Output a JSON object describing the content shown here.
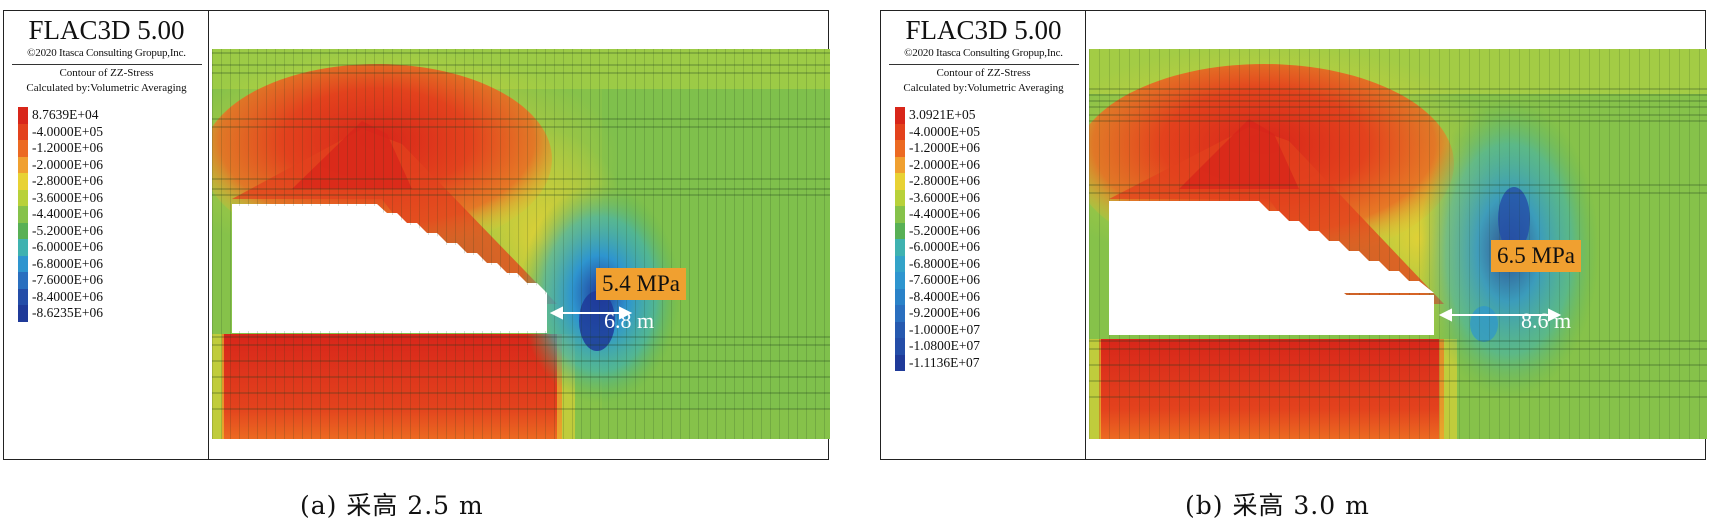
{
  "panels": [
    {
      "title": "FLAC3D 5.00",
      "copyright": "©2020 Itasca Consulting Gropup,Inc.",
      "contour_title": "Contour of ZZ-Stress",
      "calculated_by": "Calculated by:Volumetric Averaging",
      "levels": [
        "8.7639E+04",
        "-4.0000E+05",
        "-1.2000E+06",
        "-2.0000E+06",
        "-2.8000E+06",
        "-3.6000E+06",
        "-4.4000E+06",
        "-5.2000E+06",
        "-6.0000E+06",
        "-6.8000E+06",
        "-7.6000E+06",
        "-8.4000E+06",
        "-8.6235E+06"
      ],
      "level_colors": [
        "#d8261a",
        "#e3421d",
        "#ec6a22",
        "#f0a030",
        "#e8d234",
        "#b8d13a",
        "#86c24a",
        "#58b055",
        "#3fb2b0",
        "#2e95cf",
        "#2a6fbf",
        "#244da8",
        "#1f3a99"
      ],
      "stress_label": "5.4 MPa",
      "width_label": "6.8 m",
      "caption": "(a) 采高 2.5 m"
    },
    {
      "title": "FLAC3D 5.00",
      "copyright": "©2020 Itasca Consulting Gropup,Inc.",
      "contour_title": "Contour of ZZ-Stress",
      "calculated_by": "Calculated by:Volumetric Averaging",
      "levels": [
        "3.0921E+05",
        "-4.0000E+05",
        "-1.2000E+06",
        "-2.0000E+06",
        "-2.8000E+06",
        "-3.6000E+06",
        "-4.4000E+06",
        "-5.2000E+06",
        "-6.0000E+06",
        "-6.8000E+06",
        "-7.6000E+06",
        "-8.4000E+06",
        "-9.2000E+06",
        "-1.0000E+07",
        "-1.0800E+07",
        "-1.1136E+07"
      ],
      "level_colors": [
        "#d8261a",
        "#e3421d",
        "#ec6a22",
        "#f0a030",
        "#e8d234",
        "#b8d13a",
        "#86c24a",
        "#58b055",
        "#3fb2b0",
        "#33a3c8",
        "#2e95cf",
        "#2a82c8",
        "#2a6fbf",
        "#2659af",
        "#244da8",
        "#1f3a99"
      ],
      "stress_label": "6.5 MPa",
      "width_label": "8.6 m",
      "caption": "(b) 采高 3.0 m"
    }
  ]
}
